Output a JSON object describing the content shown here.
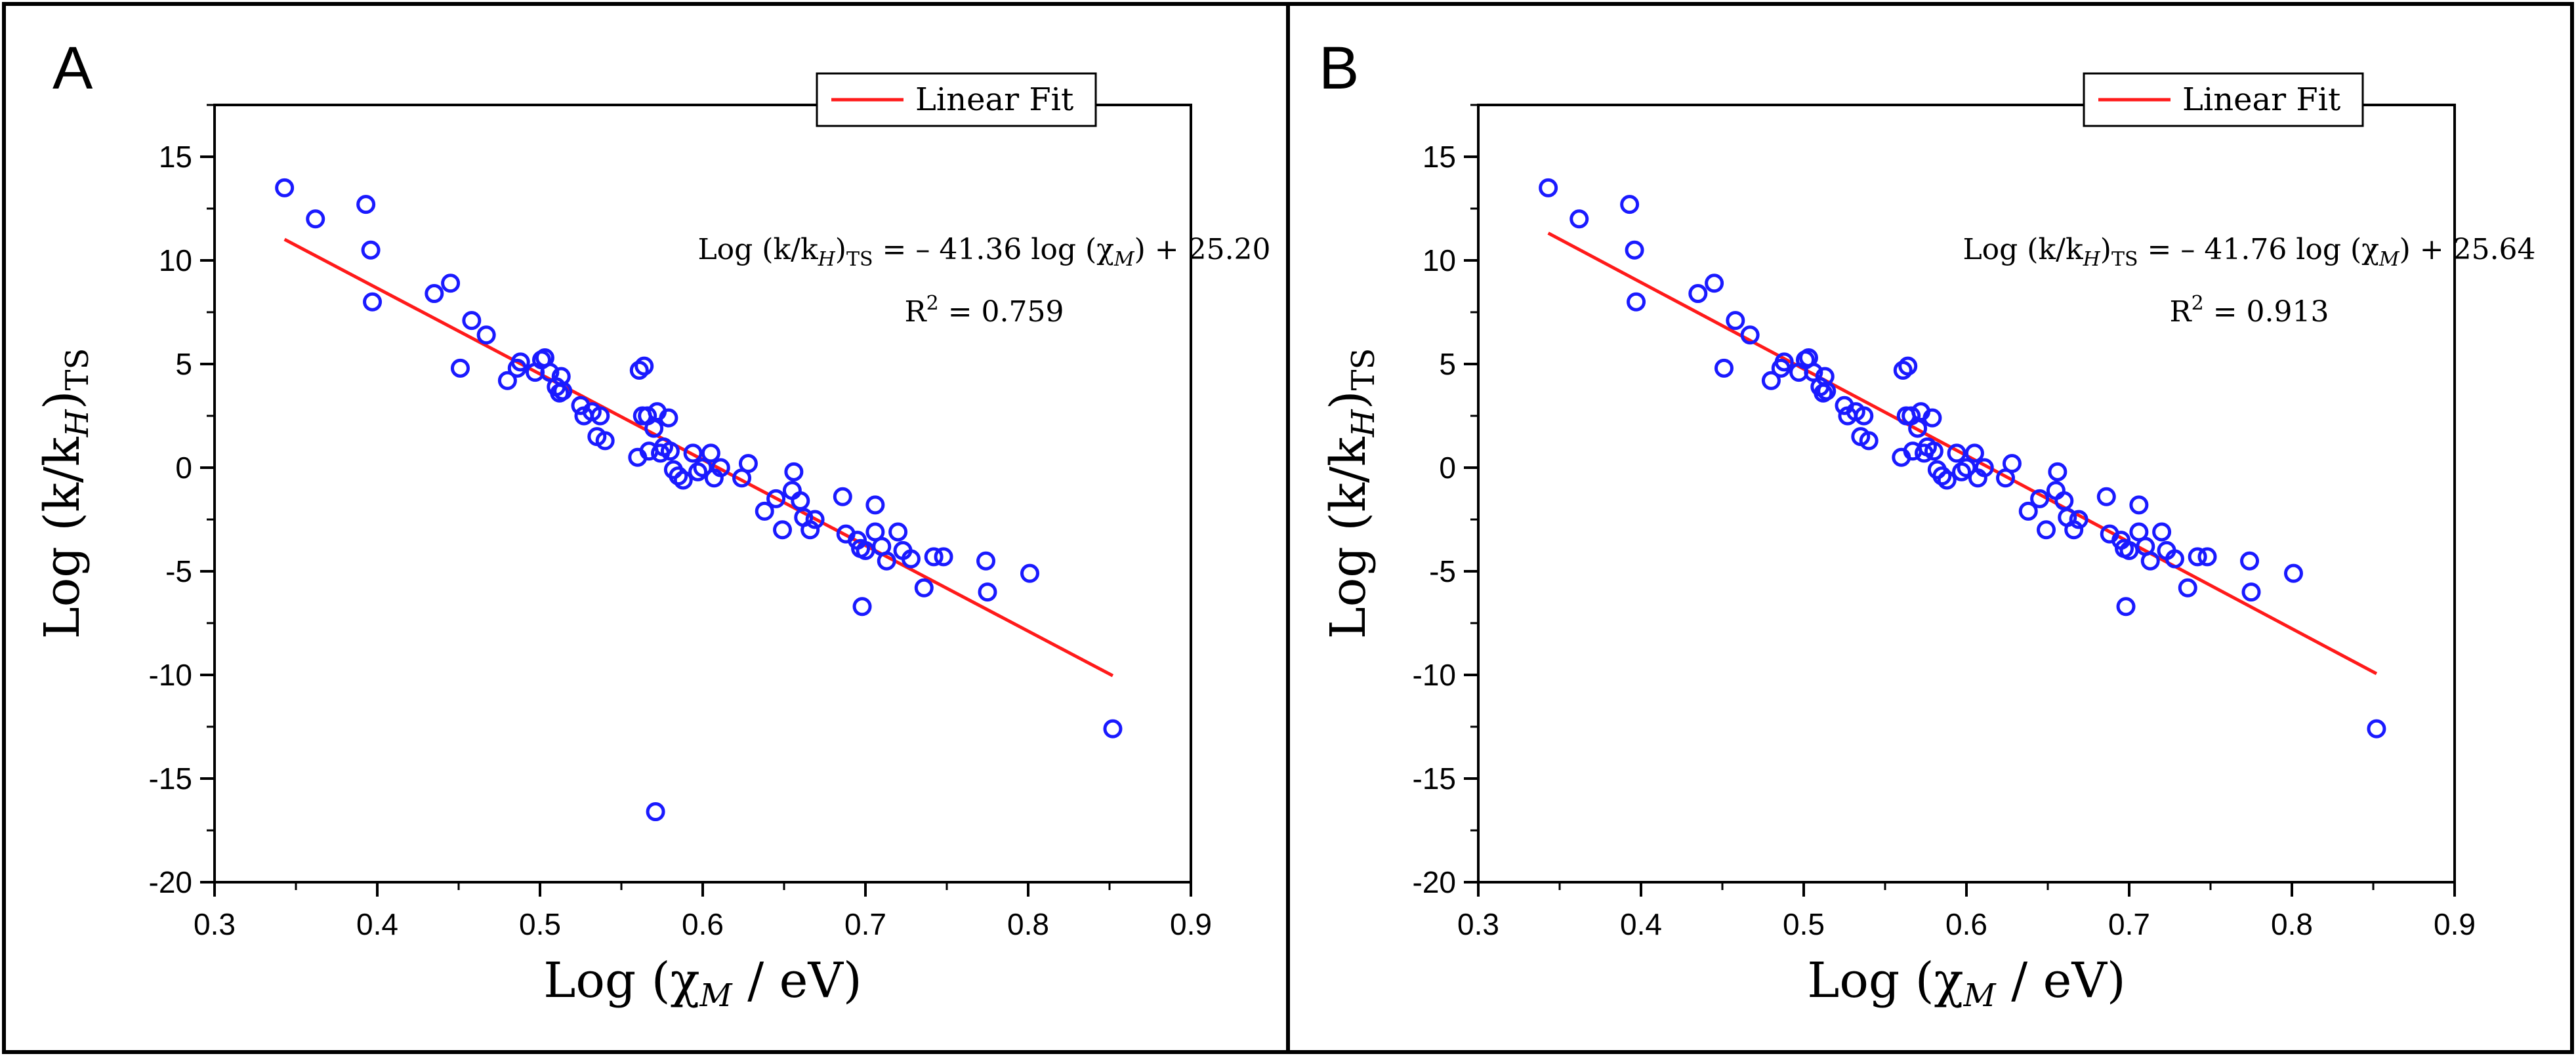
{
  "colors": {
    "points": "#1a1aff",
    "fit": "#ff1a1a",
    "axis": "#000000",
    "frame": "#000000"
  },
  "chart_data": [
    {
      "panel_label": "A",
      "type": "scatter",
      "xlabel": "Log (χ",
      "xlabel_sub": "M",
      "xlabel_tail": " / eV)",
      "ylabel": "Log (k/k",
      "ylabel_sub_h": "H",
      "ylabel_sub_ts": "TS",
      "xlim": [
        0.3,
        0.9
      ],
      "ylim": [
        -20,
        17.5
      ],
      "xticks": [
        0.3,
        0.4,
        0.5,
        0.6,
        0.7,
        0.8,
        0.9
      ],
      "xtick_labels": [
        "0.3",
        "0.4",
        "0.5",
        "0.6",
        "0.7",
        "0.8",
        "0.9"
      ],
      "yticks": [
        -20,
        -15,
        -10,
        -5,
        0,
        5,
        10,
        15
      ],
      "ytick_labels": [
        "-20",
        "-15",
        "-10",
        "-5",
        "0",
        "5",
        "10",
        "15"
      ],
      "legend": {
        "label": "Linear Fit",
        "position": "top-right"
      },
      "equation": {
        "lhs": "Log (k/k",
        "sub_h": "H",
        "sub_ts": "TS",
        "rhs": " = – 41.36 log (χ",
        "rhs_sub": "M",
        "rhs_tail": ") + 25.20",
        "r2_prefix": "R",
        "r2_sup": "2",
        "r2_value": " = 0.759"
      },
      "fit": {
        "slope": -41.36,
        "intercept": 25.2,
        "x_range": [
          0.343,
          0.852
        ]
      },
      "points": [
        [
          0.343,
          13.5
        ],
        [
          0.362,
          12.0
        ],
        [
          0.393,
          12.7
        ],
        [
          0.396,
          10.5
        ],
        [
          0.397,
          8.0
        ],
        [
          0.435,
          8.4
        ],
        [
          0.445,
          8.9
        ],
        [
          0.451,
          4.8
        ],
        [
          0.458,
          7.1
        ],
        [
          0.467,
          6.4
        ],
        [
          0.48,
          4.2
        ],
        [
          0.486,
          4.8
        ],
        [
          0.488,
          5.1
        ],
        [
          0.497,
          4.6
        ],
        [
          0.501,
          5.2
        ],
        [
          0.503,
          5.3
        ],
        [
          0.506,
          4.6
        ],
        [
          0.51,
          3.9
        ],
        [
          0.512,
          3.6
        ],
        [
          0.513,
          4.4
        ],
        [
          0.514,
          3.7
        ],
        [
          0.525,
          3.0
        ],
        [
          0.527,
          2.5
        ],
        [
          0.532,
          2.7
        ],
        [
          0.535,
          1.5
        ],
        [
          0.537,
          2.5
        ],
        [
          0.54,
          1.3
        ],
        [
          0.56,
          0.5
        ],
        [
          0.561,
          4.7
        ],
        [
          0.563,
          2.5
        ],
        [
          0.564,
          4.9
        ],
        [
          0.566,
          2.5
        ],
        [
          0.567,
          0.8
        ],
        [
          0.57,
          1.9
        ],
        [
          0.571,
          -16.6
        ],
        [
          0.572,
          2.7
        ],
        [
          0.574,
          0.7
        ],
        [
          0.576,
          1.0
        ],
        [
          0.579,
          2.4
        ],
        [
          0.58,
          0.8
        ],
        [
          0.582,
          -0.1
        ],
        [
          0.585,
          -0.4
        ],
        [
          0.588,
          -0.6
        ],
        [
          0.594,
          0.7
        ],
        [
          0.597,
          -0.2
        ],
        [
          0.6,
          0.0
        ],
        [
          0.605,
          0.7
        ],
        [
          0.607,
          -0.5
        ],
        [
          0.611,
          0.0
        ],
        [
          0.624,
          -0.5
        ],
        [
          0.628,
          0.2
        ],
        [
          0.638,
          -2.1
        ],
        [
          0.645,
          -1.5
        ],
        [
          0.649,
          -3.0
        ],
        [
          0.655,
          -1.1
        ],
        [
          0.656,
          -0.2
        ],
        [
          0.66,
          -1.6
        ],
        [
          0.662,
          -2.4
        ],
        [
          0.666,
          -3.0
        ],
        [
          0.669,
          -2.5
        ],
        [
          0.686,
          -1.4
        ],
        [
          0.688,
          -3.2
        ],
        [
          0.695,
          -3.5
        ],
        [
          0.697,
          -3.9
        ],
        [
          0.698,
          -6.7
        ],
        [
          0.7,
          -4.0
        ],
        [
          0.706,
          -1.8
        ],
        [
          0.706,
          -3.1
        ],
        [
          0.71,
          -3.8
        ],
        [
          0.713,
          -4.5
        ],
        [
          0.72,
          -3.1
        ],
        [
          0.723,
          -4.0
        ],
        [
          0.728,
          -4.4
        ],
        [
          0.736,
          -5.8
        ],
        [
          0.742,
          -4.3
        ],
        [
          0.748,
          -4.3
        ],
        [
          0.774,
          -4.5
        ],
        [
          0.775,
          -6.0
        ],
        [
          0.801,
          -5.1
        ],
        [
          0.852,
          -12.6
        ]
      ]
    },
    {
      "panel_label": "B",
      "type": "scatter",
      "xlabel": "Log (χ",
      "xlabel_sub": "M",
      "xlabel_tail": " / eV)",
      "ylabel": "Log (k/k",
      "ylabel_sub_h": "H",
      "ylabel_sub_ts": "TS",
      "xlim": [
        0.3,
        0.9
      ],
      "ylim": [
        -20,
        17.5
      ],
      "xticks": [
        0.3,
        0.4,
        0.5,
        0.6,
        0.7,
        0.8,
        0.9
      ],
      "xtick_labels": [
        "0.3",
        "0.4",
        "0.5",
        "0.6",
        "0.7",
        "0.8",
        "0.9"
      ],
      "yticks": [
        -20,
        -15,
        -10,
        -5,
        0,
        5,
        10,
        15
      ],
      "ytick_labels": [
        "-20",
        "-15",
        "-10",
        "-5",
        "0",
        "5",
        "10",
        "15"
      ],
      "legend": {
        "label": "Linear Fit",
        "position": "top-right"
      },
      "equation": {
        "lhs": "Log (k/k",
        "sub_h": "H",
        "sub_ts": "TS",
        "rhs": " = – 41.76 log (χ",
        "rhs_sub": "M",
        "rhs_tail": ") + 25.64",
        "r2_prefix": "R",
        "r2_sup": "2",
        "r2_value": " = 0.913"
      },
      "fit": {
        "slope": -41.76,
        "intercept": 25.64,
        "x_range": [
          0.343,
          0.852
        ]
      },
      "points": [
        [
          0.343,
          13.5
        ],
        [
          0.362,
          12.0
        ],
        [
          0.393,
          12.7
        ],
        [
          0.396,
          10.5
        ],
        [
          0.397,
          8.0
        ],
        [
          0.435,
          8.4
        ],
        [
          0.445,
          8.9
        ],
        [
          0.451,
          4.8
        ],
        [
          0.458,
          7.1
        ],
        [
          0.467,
          6.4
        ],
        [
          0.48,
          4.2
        ],
        [
          0.486,
          4.8
        ],
        [
          0.488,
          5.1
        ],
        [
          0.497,
          4.6
        ],
        [
          0.501,
          5.2
        ],
        [
          0.503,
          5.3
        ],
        [
          0.506,
          4.6
        ],
        [
          0.51,
          3.9
        ],
        [
          0.512,
          3.6
        ],
        [
          0.513,
          4.4
        ],
        [
          0.514,
          3.7
        ],
        [
          0.525,
          3.0
        ],
        [
          0.527,
          2.5
        ],
        [
          0.532,
          2.7
        ],
        [
          0.535,
          1.5
        ],
        [
          0.537,
          2.5
        ],
        [
          0.54,
          1.3
        ],
        [
          0.56,
          0.5
        ],
        [
          0.561,
          4.7
        ],
        [
          0.563,
          2.5
        ],
        [
          0.564,
          4.9
        ],
        [
          0.566,
          2.5
        ],
        [
          0.567,
          0.8
        ],
        [
          0.57,
          1.9
        ],
        [
          0.572,
          2.7
        ],
        [
          0.574,
          0.7
        ],
        [
          0.576,
          1.0
        ],
        [
          0.579,
          2.4
        ],
        [
          0.58,
          0.8
        ],
        [
          0.582,
          -0.1
        ],
        [
          0.585,
          -0.4
        ],
        [
          0.588,
          -0.6
        ],
        [
          0.594,
          0.7
        ],
        [
          0.597,
          -0.2
        ],
        [
          0.6,
          0.0
        ],
        [
          0.605,
          0.7
        ],
        [
          0.607,
          -0.5
        ],
        [
          0.611,
          0.0
        ],
        [
          0.624,
          -0.5
        ],
        [
          0.628,
          0.2
        ],
        [
          0.638,
          -2.1
        ],
        [
          0.645,
          -1.5
        ],
        [
          0.649,
          -3.0
        ],
        [
          0.655,
          -1.1
        ],
        [
          0.656,
          -0.2
        ],
        [
          0.66,
          -1.6
        ],
        [
          0.662,
          -2.4
        ],
        [
          0.666,
          -3.0
        ],
        [
          0.669,
          -2.5
        ],
        [
          0.686,
          -1.4
        ],
        [
          0.688,
          -3.2
        ],
        [
          0.695,
          -3.5
        ],
        [
          0.697,
          -3.9
        ],
        [
          0.698,
          -6.7
        ],
        [
          0.7,
          -4.0
        ],
        [
          0.706,
          -1.8
        ],
        [
          0.706,
          -3.1
        ],
        [
          0.71,
          -3.8
        ],
        [
          0.713,
          -4.5
        ],
        [
          0.72,
          -3.1
        ],
        [
          0.723,
          -4.0
        ],
        [
          0.728,
          -4.4
        ],
        [
          0.736,
          -5.8
        ],
        [
          0.742,
          -4.3
        ],
        [
          0.748,
          -4.3
        ],
        [
          0.774,
          -4.5
        ],
        [
          0.775,
          -6.0
        ],
        [
          0.801,
          -5.1
        ],
        [
          0.852,
          -12.6
        ]
      ]
    }
  ]
}
